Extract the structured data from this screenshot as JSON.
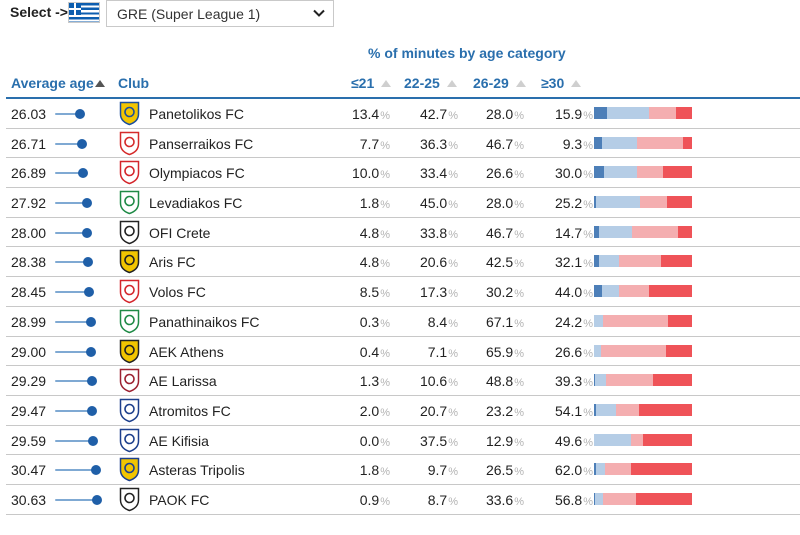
{
  "selector": {
    "label": "Select ->",
    "league": "GRE (Super League 1)",
    "flag_icon": "greece-flag-icon"
  },
  "header": {
    "group_title": "% of minutes by age category",
    "col_age": "Average age",
    "col_club": "Club",
    "col_u21": "≤21",
    "col_22_25": "22-25",
    "col_26_29": "26-29",
    "col_30plus": "≥30",
    "pct_symbol": "%"
  },
  "colors": {
    "accent": "#2a6fad",
    "u21": "#4d7fb8",
    "a22_25": "#b5cde6",
    "a26_29": "#f4aeb0",
    "a30plus": "#ef5358"
  },
  "age_scale": {
    "min": 25.5,
    "max": 31.0
  },
  "rows": [
    {
      "age": "26.03",
      "club": "Panetolikos FC",
      "u21": "13.4",
      "a22_25": "42.7",
      "a26_29": "28.0",
      "a30": "15.9",
      "logo": "panetolikos-crest-icon"
    },
    {
      "age": "26.71",
      "club": "Panserraikos FC",
      "u21": "7.7",
      "a22_25": "36.3",
      "a26_29": "46.7",
      "a30": "9.3",
      "logo": "panserraikos-crest-icon"
    },
    {
      "age": "26.89",
      "club": "Olympiacos FC",
      "u21": "10.0",
      "a22_25": "33.4",
      "a26_29": "26.6",
      "a30": "30.0",
      "logo": "olympiacos-crest-icon"
    },
    {
      "age": "27.92",
      "club": "Levadiakos FC",
      "u21": "1.8",
      "a22_25": "45.0",
      "a26_29": "28.0",
      "a30": "25.2",
      "logo": "levadiakos-crest-icon"
    },
    {
      "age": "28.00",
      "club": "OFI Crete",
      "u21": "4.8",
      "a22_25": "33.8",
      "a26_29": "46.7",
      "a30": "14.7",
      "logo": "ofi-crete-crest-icon"
    },
    {
      "age": "28.38",
      "club": "Aris FC",
      "u21": "4.8",
      "a22_25": "20.6",
      "a26_29": "42.5",
      "a30": "32.1",
      "logo": "aris-crest-icon"
    },
    {
      "age": "28.45",
      "club": "Volos FC",
      "u21": "8.5",
      "a22_25": "17.3",
      "a26_29": "30.2",
      "a30": "44.0",
      "logo": "volos-crest-icon"
    },
    {
      "age": "28.99",
      "club": "Panathinaikos FC",
      "u21": "0.3",
      "a22_25": "8.4",
      "a26_29": "67.1",
      "a30": "24.2",
      "logo": "panathinaikos-crest-icon"
    },
    {
      "age": "29.00",
      "club": "AEK Athens",
      "u21": "0.4",
      "a22_25": "7.1",
      "a26_29": "65.9",
      "a30": "26.6",
      "logo": "aek-athens-crest-icon"
    },
    {
      "age": "29.29",
      "club": "AE Larissa",
      "u21": "1.3",
      "a22_25": "10.6",
      "a26_29": "48.8",
      "a30": "39.3",
      "logo": "ae-larissa-crest-icon"
    },
    {
      "age": "29.47",
      "club": "Atromitos FC",
      "u21": "2.0",
      "a22_25": "20.7",
      "a26_29": "23.2",
      "a30": "54.1",
      "logo": "atromitos-crest-icon"
    },
    {
      "age": "29.59",
      "club": "AE Kifisia",
      "u21": "0.0",
      "a22_25": "37.5",
      "a26_29": "12.9",
      "a30": "49.6",
      "logo": "ae-kifisia-crest-icon"
    },
    {
      "age": "30.47",
      "club": "Asteras Tripolis",
      "u21": "1.8",
      "a22_25": "9.7",
      "a26_29": "26.5",
      "a30": "62.0",
      "logo": "asteras-tripolis-crest-icon"
    },
    {
      "age": "30.63",
      "club": "PAOK FC",
      "u21": "0.9",
      "a22_25": "8.7",
      "a26_29": "33.6",
      "a30": "56.8",
      "logo": "paok-crest-icon"
    }
  ]
}
